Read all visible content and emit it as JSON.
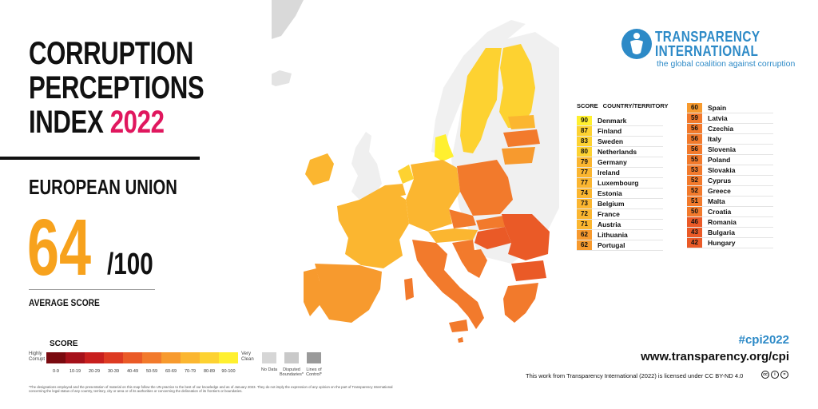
{
  "title": {
    "line1": "CORRUPTION",
    "line2": "PERCEPTIONS",
    "line3_prefix": "INDEX",
    "year": "2022",
    "region": "EUROPEAN UNION"
  },
  "average": {
    "score": "64",
    "max": "/100",
    "label": "AVERAGE SCORE"
  },
  "legend": {
    "title": "SCORE",
    "high_label": "Highly Corrupt",
    "clean_label": "Very Clean",
    "ranges": [
      "0-9",
      "10-19",
      "20-29",
      "30-39",
      "40-49",
      "50-59",
      "60-69",
      "70-79",
      "80-89",
      "90-100"
    ],
    "colors": [
      "#7a0a0f",
      "#a5111a",
      "#c81f1e",
      "#dd3a22",
      "#ea5a27",
      "#f27a2c",
      "#f79a2e",
      "#fbb630",
      "#fdd231",
      "#fff02f"
    ],
    "no_data": "No Data",
    "disputed": "Disputed Boundaries*",
    "lines_control": "Lines of Control*",
    "disclaimer": "*The designations employed and the presentation of material on this map follow the UN practice to the best of our knowledge and as of January 2023. They do not imply the expression of any opinion on the part of Transparency International concerning the legal status of any country, territory, city or area or of its authorities or concerning the delineation of its frontiers or boundaries."
  },
  "logo": {
    "name_line1": "TRANSPARENCY",
    "name_line2": "INTERNATIONAL",
    "tagline": "the global coalition against corruption"
  },
  "table": {
    "score_header": "SCORE",
    "country_header": "COUNTRY/TERRITORY",
    "left": [
      {
        "score": "90",
        "name": "Denmark",
        "color": "#fff02f"
      },
      {
        "score": "87",
        "name": "Finland",
        "color": "#fdd231"
      },
      {
        "score": "83",
        "name": "Sweden",
        "color": "#fdd231"
      },
      {
        "score": "80",
        "name": "Netherlands",
        "color": "#fdd231"
      },
      {
        "score": "79",
        "name": "Germany",
        "color": "#fbb630"
      },
      {
        "score": "77",
        "name": "Ireland",
        "color": "#fbb630"
      },
      {
        "score": "77",
        "name": "Luxembourg",
        "color": "#fbb630"
      },
      {
        "score": "74",
        "name": "Estonia",
        "color": "#fbb630"
      },
      {
        "score": "73",
        "name": "Belgium",
        "color": "#fbb630"
      },
      {
        "score": "72",
        "name": "France",
        "color": "#fbb630"
      },
      {
        "score": "71",
        "name": "Austria",
        "color": "#fbb630"
      },
      {
        "score": "62",
        "name": "Lithuania",
        "color": "#f79a2e"
      },
      {
        "score": "62",
        "name": "Portugal",
        "color": "#f79a2e"
      }
    ],
    "right": [
      {
        "score": "60",
        "name": "Spain",
        "color": "#f79a2e"
      },
      {
        "score": "59",
        "name": "Latvia",
        "color": "#f27a2c"
      },
      {
        "score": "56",
        "name": "Czechia",
        "color": "#f27a2c"
      },
      {
        "score": "56",
        "name": "Italy",
        "color": "#f27a2c"
      },
      {
        "score": "56",
        "name": "Slovenia",
        "color": "#f27a2c"
      },
      {
        "score": "55",
        "name": "Poland",
        "color": "#f27a2c"
      },
      {
        "score": "53",
        "name": "Slovakia",
        "color": "#f27a2c"
      },
      {
        "score": "52",
        "name": "Cyprus",
        "color": "#f27a2c"
      },
      {
        "score": "52",
        "name": "Greece",
        "color": "#f27a2c"
      },
      {
        "score": "51",
        "name": "Malta",
        "color": "#f27a2c"
      },
      {
        "score": "50",
        "name": "Croatia",
        "color": "#f27a2c"
      },
      {
        "score": "46",
        "name": "Romania",
        "color": "#ea5a27"
      },
      {
        "score": "43",
        "name": "Bulgaria",
        "color": "#ea5a27"
      },
      {
        "score": "42",
        "name": "Hungary",
        "color": "#ea5a27"
      }
    ]
  },
  "footer": {
    "hashtag": "#cpi2022",
    "url": "www.transparency.org/cpi",
    "license": "This work from Transparency International (2022) is licensed under CC BY-ND 4.0",
    "cc_icons": [
      "cc-icon",
      "by-icon",
      "nd-icon"
    ]
  }
}
